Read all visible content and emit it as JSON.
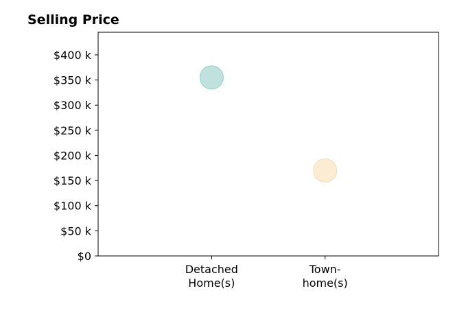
{
  "chart_data": {
    "type": "scatter",
    "title": "Selling Price",
    "xlabel": "",
    "ylabel": "",
    "categories": [
      [
        "Detached",
        "Home(s)"
      ],
      [
        "Town-",
        "home(s)"
      ]
    ],
    "values": [
      355000,
      170000
    ],
    "point_colors": [
      "#a9d8d3",
      "#f9e6c4"
    ],
    "point_edge_colors": [
      "#8ecfc6",
      "#f2dcb4"
    ],
    "ylim": [
      0,
      445000
    ],
    "y_ticks": [
      0,
      50000,
      100000,
      150000,
      200000,
      250000,
      300000,
      350000,
      400000
    ],
    "y_tick_labels": [
      "$0",
      "$50 k",
      "$100 k",
      "$150 k",
      "$200 k",
      "$250 k",
      "$300 k",
      "$350 k",
      "$400 k"
    ],
    "x_range": [
      0,
      3
    ],
    "grid": false,
    "legend": "none"
  }
}
